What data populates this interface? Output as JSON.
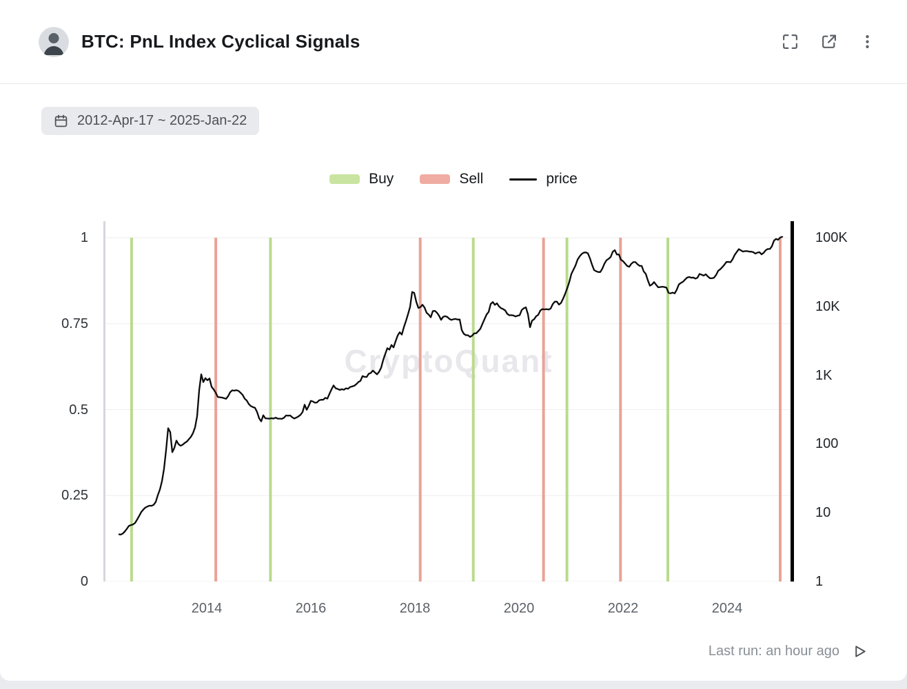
{
  "header": {
    "title": "BTC: PnL Index Cyclical Signals"
  },
  "date_range": "2012-Apr-17 ~ 2025-Jan-22",
  "legend": [
    {
      "label": "Buy",
      "type": "swatch",
      "color": "#c9e4a0"
    },
    {
      "label": "Sell",
      "type": "swatch",
      "color": "#f0aca2"
    },
    {
      "label": "price",
      "type": "line",
      "color": "#000000"
    }
  ],
  "watermark": "CryptoQuant",
  "footer": {
    "last_run": "Last run: an hour ago"
  },
  "chart_data": {
    "type": "line",
    "title": "BTC: PnL Index Cyclical Signals",
    "x_range": [
      2012.3,
      2025.06
    ],
    "x_ticks": [
      2014,
      2016,
      2018,
      2020,
      2022,
      2024
    ],
    "left_axis": {
      "ticks": [
        1,
        0.75,
        0.5,
        0.25,
        0
      ],
      "range": [
        0,
        1
      ]
    },
    "right_axis": {
      "scale": "log",
      "range": [
        1,
        100000
      ],
      "ticks": [
        {
          "label": "100K",
          "value": 100000
        },
        {
          "label": "10K",
          "value": 10000
        },
        {
          "label": "1K",
          "value": 1000
        },
        {
          "label": "100",
          "value": 100
        },
        {
          "label": "10",
          "value": 10
        },
        {
          "label": "1",
          "value": 1
        }
      ]
    },
    "buy_signals": [
      2012.55,
      2015.22,
      2019.12,
      2020.92,
      2022.86
    ],
    "sell_signals": [
      2014.17,
      2018.1,
      2020.47,
      2021.95,
      2025.02
    ],
    "colors": {
      "buy": "#b9db8d",
      "sell": "#e9a396",
      "price": "#0b0b0b",
      "grid": "#eeeef2",
      "left_axis": "#d5d7db",
      "right_axis": "#000000"
    },
    "price_series": [
      [
        2012.3,
        5.0
      ],
      [
        2012.4,
        5.2
      ],
      [
        2012.5,
        6.5
      ],
      [
        2012.6,
        6.6
      ],
      [
        2012.7,
        9.0
      ],
      [
        2012.8,
        11.5
      ],
      [
        2012.9,
        12.5
      ],
      [
        2013.0,
        13.5
      ],
      [
        2013.08,
        20
      ],
      [
        2013.16,
        35
      ],
      [
        2013.22,
        90
      ],
      [
        2013.27,
        230
      ],
      [
        2013.31,
        110
      ],
      [
        2013.34,
        68
      ],
      [
        2013.4,
        115
      ],
      [
        2013.47,
        95
      ],
      [
        2013.55,
        100
      ],
      [
        2013.63,
        108
      ],
      [
        2013.72,
        135
      ],
      [
        2013.8,
        200
      ],
      [
        2013.84,
        500
      ],
      [
        2013.88,
        1150
      ],
      [
        2013.92,
        750
      ],
      [
        2013.96,
        900
      ],
      [
        2014.0,
        820
      ],
      [
        2014.04,
        950
      ],
      [
        2014.08,
        700
      ],
      [
        2014.13,
        630
      ],
      [
        2014.17,
        550
      ],
      [
        2014.22,
        450
      ],
      [
        2014.3,
        490
      ],
      [
        2014.38,
        445
      ],
      [
        2014.46,
        590
      ],
      [
        2014.54,
        600
      ],
      [
        2014.62,
        585
      ],
      [
        2014.7,
        490
      ],
      [
        2014.78,
        400
      ],
      [
        2014.86,
        350
      ],
      [
        2014.94,
        330
      ],
      [
        2015.03,
        210
      ],
      [
        2015.08,
        270
      ],
      [
        2015.14,
        235
      ],
      [
        2015.22,
        245
      ],
      [
        2015.3,
        237
      ],
      [
        2015.38,
        242
      ],
      [
        2015.46,
        232
      ],
      [
        2015.54,
        265
      ],
      [
        2015.62,
        255
      ],
      [
        2015.7,
        235
      ],
      [
        2015.78,
        260
      ],
      [
        2015.84,
        310
      ],
      [
        2015.88,
        390
      ],
      [
        2015.92,
        330
      ],
      [
        2016.0,
        430
      ],
      [
        2016.08,
        395
      ],
      [
        2016.16,
        420
      ],
      [
        2016.24,
        440
      ],
      [
        2016.33,
        460
      ],
      [
        2016.42,
        700
      ],
      [
        2016.47,
        660
      ],
      [
        2016.55,
        610
      ],
      [
        2016.63,
        600
      ],
      [
        2016.71,
        615
      ],
      [
        2016.79,
        640
      ],
      [
        2016.87,
        730
      ],
      [
        2016.95,
        790
      ],
      [
        2017.0,
        980
      ],
      [
        2017.05,
        890
      ],
      [
        2017.13,
        1100
      ],
      [
        2017.2,
        1180
      ],
      [
        2017.25,
        1050
      ],
      [
        2017.33,
        1250
      ],
      [
        2017.42,
        2100
      ],
      [
        2017.46,
        2600
      ],
      [
        2017.5,
        2400
      ],
      [
        2017.55,
        2800
      ],
      [
        2017.6,
        2600
      ],
      [
        2017.65,
        3900
      ],
      [
        2017.7,
        4300
      ],
      [
        2017.75,
        4100
      ],
      [
        2017.8,
        5700
      ],
      [
        2017.85,
        7200
      ],
      [
        2017.9,
        9800
      ],
      [
        2017.94,
        16500
      ],
      [
        2017.97,
        19200
      ],
      [
        2018.0,
        13800
      ],
      [
        2018.04,
        11000
      ],
      [
        2018.08,
        8700
      ],
      [
        2018.12,
        10300
      ],
      [
        2018.16,
        11000
      ],
      [
        2018.22,
        8300
      ],
      [
        2018.3,
        7000
      ],
      [
        2018.36,
        9300
      ],
      [
        2018.42,
        8400
      ],
      [
        2018.5,
        6600
      ],
      [
        2018.56,
        7500
      ],
      [
        2018.62,
        7000
      ],
      [
        2018.7,
        6500
      ],
      [
        2018.78,
        6400
      ],
      [
        2018.86,
        6300
      ],
      [
        2018.9,
        4300
      ],
      [
        2018.96,
        3800
      ],
      [
        2019.0,
        3700
      ],
      [
        2019.06,
        3500
      ],
      [
        2019.12,
        3800
      ],
      [
        2019.2,
        4000
      ],
      [
        2019.28,
        5100
      ],
      [
        2019.36,
        7100
      ],
      [
        2019.42,
        8600
      ],
      [
        2019.47,
        12500
      ],
      [
        2019.52,
        10800
      ],
      [
        2019.56,
        11800
      ],
      [
        2019.62,
        10200
      ],
      [
        2019.7,
        9500
      ],
      [
        2019.78,
        8300
      ],
      [
        2019.86,
        7500
      ],
      [
        2019.94,
        7200
      ],
      [
        2020.0,
        7200
      ],
      [
        2020.06,
        8800
      ],
      [
        2020.12,
        10000
      ],
      [
        2020.16,
        8900
      ],
      [
        2020.21,
        5000
      ],
      [
        2020.24,
        6200
      ],
      [
        2020.3,
        6800
      ],
      [
        2020.36,
        7700
      ],
      [
        2020.42,
        9100
      ],
      [
        2020.47,
        9300
      ],
      [
        2020.54,
        9200
      ],
      [
        2020.6,
        9100
      ],
      [
        2020.66,
        11300
      ],
      [
        2020.72,
        11700
      ],
      [
        2020.78,
        10400
      ],
      [
        2020.84,
        13000
      ],
      [
        2020.88,
        15500
      ],
      [
        2020.92,
        18300
      ],
      [
        2020.96,
        23000
      ],
      [
        2021.0,
        29000
      ],
      [
        2021.04,
        33500
      ],
      [
        2021.08,
        38000
      ],
      [
        2021.12,
        48000
      ],
      [
        2021.16,
        52000
      ],
      [
        2021.22,
        57000
      ],
      [
        2021.26,
        58500
      ],
      [
        2021.3,
        63200
      ],
      [
        2021.34,
        54000
      ],
      [
        2021.38,
        49000
      ],
      [
        2021.42,
        37000
      ],
      [
        2021.46,
        35500
      ],
      [
        2021.5,
        33500
      ],
      [
        2021.54,
        31800
      ],
      [
        2021.58,
        34000
      ],
      [
        2021.62,
        40000
      ],
      [
        2021.68,
        47500
      ],
      [
        2021.74,
        48800
      ],
      [
        2021.8,
        61500
      ],
      [
        2021.84,
        66500
      ],
      [
        2021.88,
        58000
      ],
      [
        2021.92,
        57000
      ],
      [
        2021.96,
        47000
      ],
      [
        2022.0,
        46500
      ],
      [
        2022.06,
        38500
      ],
      [
        2022.12,
        39000
      ],
      [
        2022.18,
        43500
      ],
      [
        2022.24,
        45000
      ],
      [
        2022.3,
        41000
      ],
      [
        2022.36,
        39500
      ],
      [
        2022.42,
        30000
      ],
      [
        2022.46,
        29500
      ],
      [
        2022.5,
        20000
      ],
      [
        2022.54,
        21500
      ],
      [
        2022.6,
        23500
      ],
      [
        2022.66,
        20000
      ],
      [
        2022.72,
        19500
      ],
      [
        2022.78,
        20000
      ],
      [
        2022.84,
        19300
      ],
      [
        2022.88,
        16300
      ],
      [
        2022.94,
        16800
      ],
      [
        2023.0,
        16600
      ],
      [
        2023.06,
        21000
      ],
      [
        2023.12,
        23500
      ],
      [
        2023.18,
        24500
      ],
      [
        2023.24,
        28200
      ],
      [
        2023.3,
        28000
      ],
      [
        2023.36,
        27500
      ],
      [
        2023.42,
        26500
      ],
      [
        2023.48,
        30400
      ],
      [
        2023.54,
        29500
      ],
      [
        2023.6,
        29200
      ],
      [
        2023.66,
        26000
      ],
      [
        2023.72,
        26500
      ],
      [
        2023.78,
        27500
      ],
      [
        2023.84,
        34500
      ],
      [
        2023.9,
        37500
      ],
      [
        2023.96,
        42500
      ],
      [
        2024.0,
        44000
      ],
      [
        2024.06,
        43000
      ],
      [
        2024.12,
        52000
      ],
      [
        2024.18,
        62000
      ],
      [
        2024.22,
        70000
      ],
      [
        2024.26,
        67500
      ],
      [
        2024.3,
        64500
      ],
      [
        2024.36,
        66500
      ],
      [
        2024.42,
        61500
      ],
      [
        2024.48,
        65000
      ],
      [
        2024.54,
        57500
      ],
      [
        2024.6,
        64000
      ],
      [
        2024.66,
        58500
      ],
      [
        2024.72,
        62500
      ],
      [
        2024.78,
        67000
      ],
      [
        2024.82,
        69500
      ],
      [
        2024.86,
        75500
      ],
      [
        2024.9,
        91000
      ],
      [
        2024.94,
        98000
      ],
      [
        2024.98,
        95500
      ],
      [
        2025.02,
        102000
      ],
      [
        2025.06,
        104500
      ]
    ]
  }
}
